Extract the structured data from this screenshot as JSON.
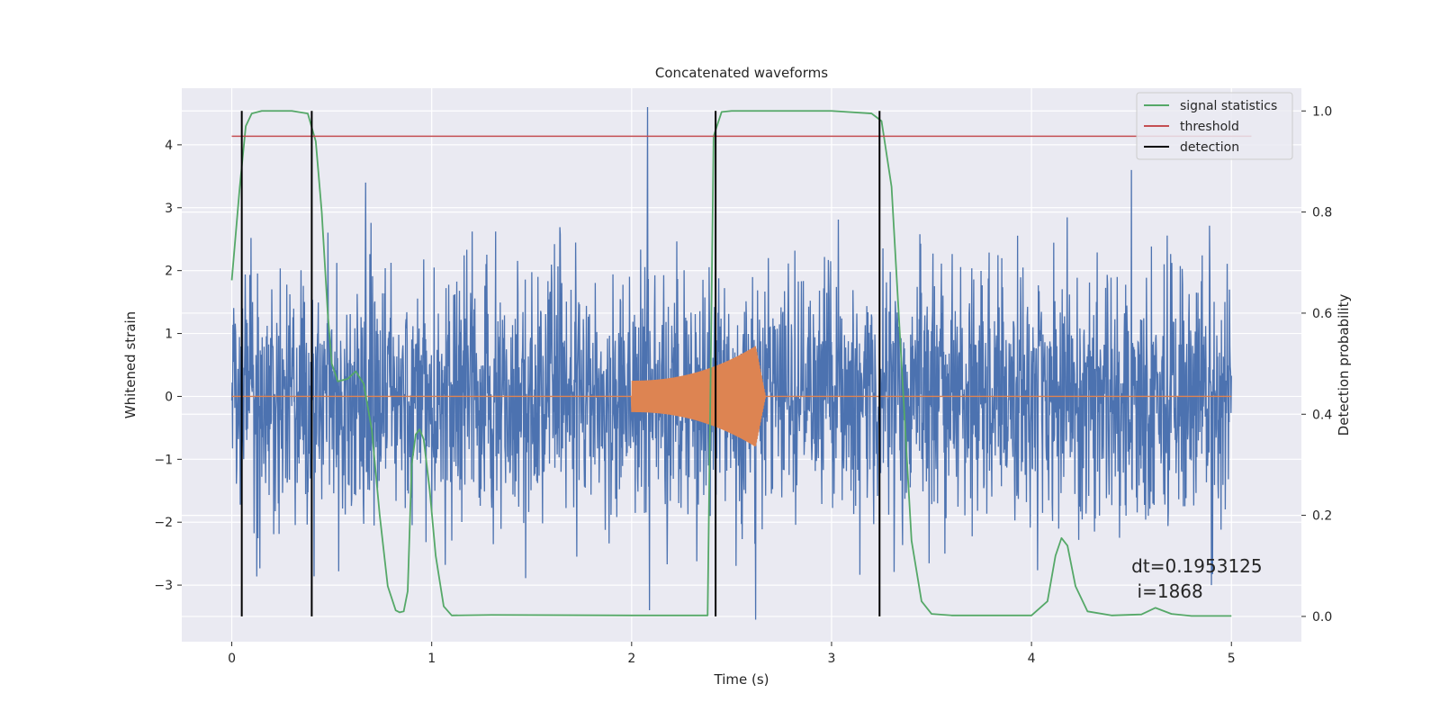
{
  "chart_data": {
    "type": "line",
    "title": "Concatenated waveforms",
    "xlabel": "Time (s)",
    "ylabel_left": "Whitened strain",
    "ylabel_right": "Detection probability",
    "xlim": [
      -0.25,
      5.35
    ],
    "ylim_left": [
      -3.9,
      4.9
    ],
    "ylim_right": [
      -0.05,
      1.045
    ],
    "x_ticks": [
      0,
      1,
      2,
      3,
      4,
      5
    ],
    "y_ticks_left": [
      -3,
      -2,
      -1,
      0,
      1,
      2,
      3,
      4
    ],
    "y_ticks_right": [
      0.0,
      0.2,
      0.4,
      0.6,
      0.8,
      1.0
    ],
    "y_tick_labels_left": [
      "−3",
      "−2",
      "−1",
      "0",
      "1",
      "2",
      "3",
      "4"
    ],
    "y_tick_labels_right": [
      "0.0",
      "0.2",
      "0.4",
      "0.6",
      "0.8",
      "1.0"
    ],
    "grid": true,
    "legend": {
      "placement": "top-right",
      "entries": [
        {
          "label": "signal statistics",
          "color": "#55a868"
        },
        {
          "label": "threshold",
          "color": "#c44e52"
        },
        {
          "label": "detection",
          "color": "#000000"
        }
      ]
    },
    "series": [
      {
        "kind": "whitened-strain-noise",
        "axis": "left",
        "color": "#4c72b0",
        "x_range": [
          0,
          5
        ],
        "envelope": 2.6,
        "peaks": [
          [
            2.08,
            4.6
          ],
          [
            4.5,
            3.6
          ],
          [
            0.67,
            3.4
          ],
          [
            2.09,
            -3.4
          ],
          [
            2.62,
            -3.55
          ],
          [
            4.9,
            -3.0
          ]
        ]
      },
      {
        "kind": "injected-signal",
        "axis": "left",
        "color": "#dd8452",
        "x_range": [
          0,
          5
        ],
        "chirp_start": 2.0,
        "chirp_peak": 2.62,
        "start_amp": 0.25,
        "peak_amp": 0.8
      },
      {
        "name": "signal statistics",
        "axis": "right",
        "color": "#55a868",
        "x": [
          0,
          0.04,
          0.07,
          0.1,
          0.15,
          0.3,
          0.38,
          0.42,
          0.45,
          0.48,
          0.5,
          0.53,
          0.58,
          0.62,
          0.66,
          0.7,
          0.74,
          0.78,
          0.82,
          0.84,
          0.86,
          0.88,
          0.9,
          0.92,
          0.94,
          0.96,
          0.99,
          1.02,
          1.06,
          1.1,
          1.3,
          2.0,
          2.38,
          2.41,
          2.45,
          2.5,
          3.0,
          3.2,
          3.25,
          3.3,
          3.35,
          3.4,
          3.45,
          3.5,
          3.6,
          4.0,
          4.08,
          4.12,
          4.15,
          4.18,
          4.22,
          4.28,
          4.4,
          4.55,
          4.62,
          4.7,
          4.8,
          5.0
        ],
        "y": [
          0.665,
          0.85,
          0.97,
          0.995,
          1.0,
          1.0,
          0.995,
          0.94,
          0.8,
          0.6,
          0.5,
          0.465,
          0.47,
          0.485,
          0.46,
          0.37,
          0.2,
          0.06,
          0.012,
          0.008,
          0.01,
          0.05,
          0.3,
          0.36,
          0.37,
          0.35,
          0.25,
          0.12,
          0.02,
          0.002,
          0.003,
          0.002,
          0.002,
          0.95,
          0.998,
          1.0,
          1.0,
          0.995,
          0.98,
          0.85,
          0.5,
          0.15,
          0.03,
          0.005,
          0.002,
          0.002,
          0.03,
          0.12,
          0.155,
          0.14,
          0.06,
          0.01,
          0.002,
          0.004,
          0.017,
          0.005,
          0.001,
          0.001
        ]
      },
      {
        "name": "threshold",
        "axis": "right",
        "color": "#c44e52",
        "x": [
          0,
          5.1
        ],
        "y": [
          0.95,
          0.95
        ]
      }
    ],
    "detections": {
      "color": "#000000",
      "x": [
        0.05,
        0.4,
        2.42,
        3.24
      ],
      "y_range_right": [
        0.0,
        1.0
      ]
    },
    "annotation": {
      "line1": "dt=0.1953125",
      "line2": " i=1868",
      "x": 4.5,
      "y_right": 0.1
    }
  }
}
